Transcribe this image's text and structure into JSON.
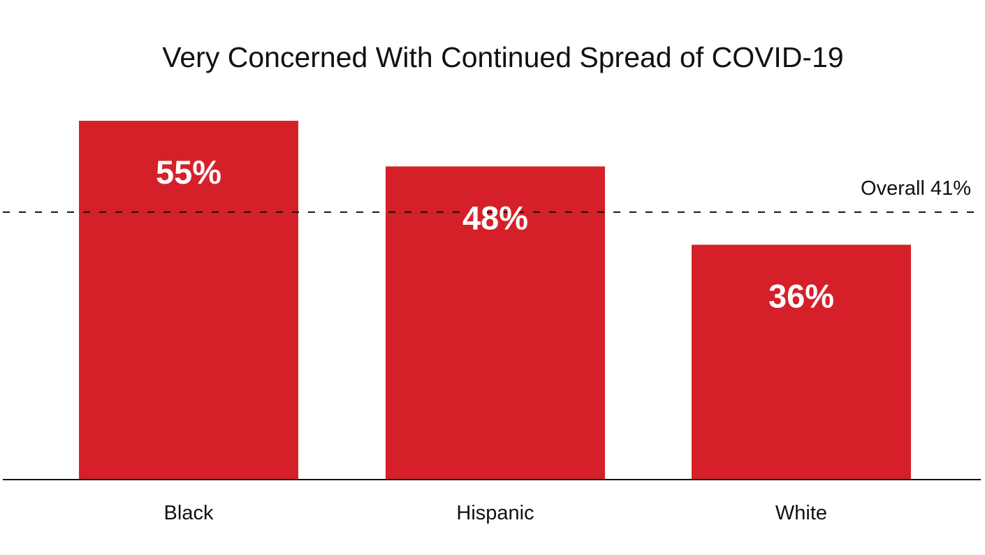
{
  "chart_data": {
    "type": "bar",
    "title": "Very Concerned With Continued Spread of COVID-19",
    "categories": [
      "Black",
      "Hispanic",
      "White"
    ],
    "values": [
      55,
      48,
      36
    ],
    "value_labels": [
      "55%",
      "48%",
      "36%"
    ],
    "unit": "%",
    "ylim": [
      0,
      55
    ],
    "grid": false,
    "reference_line": {
      "value": 41,
      "label": "Overall 41%",
      "style": "dashed"
    },
    "colors": {
      "bar": "#d52029",
      "bar_label": "#ffffff",
      "text": "#111111",
      "axis": "#111111"
    }
  }
}
